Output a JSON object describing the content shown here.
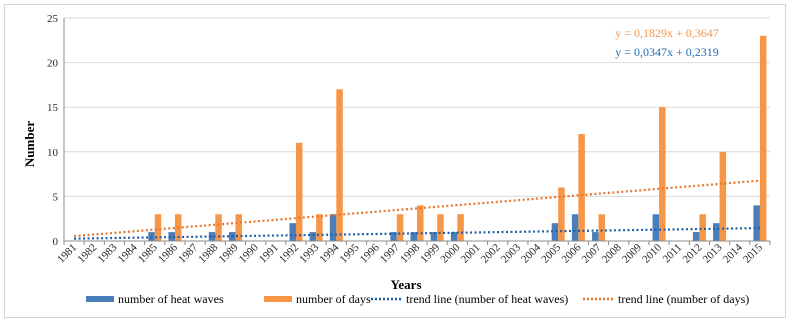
{
  "chart_data": {
    "type": "bar",
    "xlabel": "Years",
    "ylabel": "Number",
    "ylim": [
      0,
      25
    ],
    "yticks": [
      0,
      5,
      10,
      15,
      20,
      25
    ],
    "grid": true,
    "legend_position": "bottom",
    "categories": [
      "1981",
      "1982",
      "1983",
      "1984",
      "1985",
      "1986",
      "1987",
      "1988",
      "1989",
      "1990",
      "1991",
      "1992",
      "1993",
      "1994",
      "1995",
      "1996",
      "1997",
      "1998",
      "1999",
      "2000",
      "2001",
      "2002",
      "2003",
      "2004",
      "2005",
      "2006",
      "2007",
      "2008",
      "2009",
      "2010",
      "2011",
      "2012",
      "2013",
      "2014",
      "2015"
    ],
    "series": [
      {
        "name": "number of heat waves",
        "color": "#4a7ebb",
        "values": [
          0,
          0,
          0,
          0,
          1,
          1,
          0,
          1,
          1,
          0,
          0,
          2,
          1,
          3,
          0,
          0,
          1,
          1,
          1,
          1,
          0,
          0,
          0,
          0,
          2,
          3,
          1,
          0,
          0,
          3,
          0,
          1,
          2,
          0,
          4
        ]
      },
      {
        "name": "number of days",
        "color": "#f79646",
        "values": [
          0,
          0,
          0,
          0,
          3,
          3,
          0,
          3,
          3,
          0,
          0,
          11,
          3,
          17,
          0,
          0,
          3,
          4,
          3,
          3,
          0,
          0,
          0,
          0,
          6,
          12,
          3,
          0,
          0,
          15,
          0,
          3,
          10,
          0,
          23
        ]
      }
    ],
    "trendlines": [
      {
        "name": "trend line (number of heat waves)",
        "color": "#1f5fa8",
        "slope": 0.0347,
        "intercept": 0.2319,
        "equation": "y = 0,0347x + 0,2319"
      },
      {
        "name": "trend line (number of days)",
        "color": "#e8762d",
        "slope": 0.1829,
        "intercept": 0.3647,
        "equation": "y = 0,1829x + 0,3647"
      }
    ]
  }
}
